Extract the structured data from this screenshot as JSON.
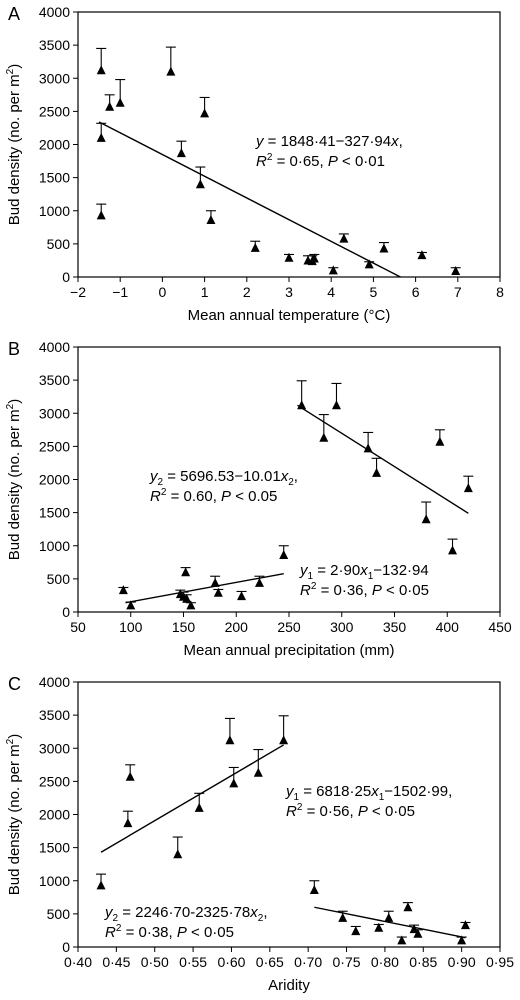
{
  "chart_data": [
    {
      "panel": "A",
      "type": "scatter",
      "xlabel": "Mean annual temperature (°C)",
      "ylabel": "Bud density (no. per m²)",
      "xlim": [
        -2,
        8
      ],
      "ylim": [
        0,
        4000
      ],
      "xticks": [
        "−2",
        "−1",
        "0",
        "1",
        "2",
        "3",
        "4",
        "5",
        "6",
        "7",
        "8"
      ],
      "yticks": [
        "0",
        "500",
        "1000",
        "1500",
        "2000",
        "2500",
        "3000",
        "3500",
        "4000"
      ],
      "points": [
        {
          "x": -1.45,
          "y": 3120,
          "err": 330
        },
        {
          "x": -1.45,
          "y": 2100,
          "err": 220
        },
        {
          "x": -1.45,
          "y": 930,
          "err": 170
        },
        {
          "x": -1.25,
          "y": 2570,
          "err": 180
        },
        {
          "x": -1.0,
          "y": 2630,
          "err": 350
        },
        {
          "x": 0.2,
          "y": 3100,
          "err": 370
        },
        {
          "x": 0.45,
          "y": 1870,
          "err": 180
        },
        {
          "x": 0.9,
          "y": 1400,
          "err": 260
        },
        {
          "x": 1.0,
          "y": 2470,
          "err": 240
        },
        {
          "x": 1.15,
          "y": 860,
          "err": 140
        },
        {
          "x": 2.2,
          "y": 440,
          "err": 100
        },
        {
          "x": 3.0,
          "y": 290,
          "err": 50
        },
        {
          "x": 3.45,
          "y": 250,
          "err": 70
        },
        {
          "x": 3.55,
          "y": 240,
          "err": 80
        },
        {
          "x": 3.6,
          "y": 280,
          "err": 60
        },
        {
          "x": 4.05,
          "y": 100,
          "err": 40
        },
        {
          "x": 4.3,
          "y": 580,
          "err": 70
        },
        {
          "x": 4.9,
          "y": 190,
          "err": 40
        },
        {
          "x": 5.25,
          "y": 430,
          "err": 90
        },
        {
          "x": 6.15,
          "y": 330,
          "err": 40
        },
        {
          "x": 6.95,
          "y": 90,
          "err": 50
        }
      ],
      "fit_lines": [
        {
          "x": [
            -1.5,
            5.64
          ],
          "y": [
            2340,
            0
          ]
        }
      ],
      "equations": [
        {
          "lines": [
            [
              "y",
              " = 1848·41−327·94",
              "x",
              ","
            ],
            [
              "R",
              "2",
              " = 0·65,  ",
              "P",
              " < 0·01"
            ]
          ],
          "pos": "upper-middle"
        }
      ]
    },
    {
      "panel": "B",
      "type": "scatter",
      "xlabel": "Mean annual precipitation (mm)",
      "ylabel": "Bud density (no. per m²)",
      "xlim": [
        50,
        450
      ],
      "ylim": [
        0,
        4000
      ],
      "xticks": [
        "50",
        "100",
        "150",
        "200",
        "250",
        "300",
        "350",
        "400",
        "450"
      ],
      "yticks": [
        "0",
        "500",
        "1000",
        "1500",
        "2000",
        "2500",
        "3000",
        "3500",
        "4000"
      ],
      "points": [
        {
          "x": 93,
          "y": 330,
          "err": 40
        },
        {
          "x": 100,
          "y": 100,
          "err": 50
        },
        {
          "x": 147,
          "y": 270,
          "err": 60
        },
        {
          "x": 150,
          "y": 230,
          "err": 70
        },
        {
          "x": 152,
          "y": 600,
          "err": 70
        },
        {
          "x": 153,
          "y": 200,
          "err": 60
        },
        {
          "x": 157,
          "y": 100,
          "err": 40
        },
        {
          "x": 180,
          "y": 440,
          "err": 100
        },
        {
          "x": 183,
          "y": 290,
          "err": 50
        },
        {
          "x": 205,
          "y": 240,
          "err": 70
        },
        {
          "x": 222,
          "y": 440,
          "err": 100
        },
        {
          "x": 245,
          "y": 860,
          "err": 140
        },
        {
          "x": 262,
          "y": 3120,
          "err": 370
        },
        {
          "x": 283,
          "y": 2630,
          "err": 350
        },
        {
          "x": 295,
          "y": 3120,
          "err": 330
        },
        {
          "x": 325,
          "y": 2470,
          "err": 240
        },
        {
          "x": 333,
          "y": 2100,
          "err": 220
        },
        {
          "x": 380,
          "y": 1400,
          "err": 260
        },
        {
          "x": 393,
          "y": 2570,
          "err": 180
        },
        {
          "x": 405,
          "y": 930,
          "err": 170
        },
        {
          "x": 420,
          "y": 1870,
          "err": 180
        }
      ],
      "fit_lines": [
        {
          "x": [
            95,
            245
          ],
          "y": [
            140,
            578
          ]
        },
        {
          "x": [
            258,
            420
          ],
          "y": [
            3120,
            1490
          ]
        }
      ],
      "equations": [
        {
          "lines": [
            [
              "y",
              "2",
              " = 5696.53−10.01",
              "x",
              "2",
              ","
            ],
            [
              "R",
              "2",
              " = 0.60,  ",
              "P",
              " < 0.05"
            ]
          ],
          "pos": "middle-left"
        },
        {
          "lines": [
            [
              "y",
              "1",
              " = 2·90",
              "x",
              "1",
              "−132·94"
            ],
            [
              "R",
              "2",
              " = 0·36,  ",
              "P",
              " < 0·05"
            ]
          ],
          "pos": "lower-right"
        }
      ]
    },
    {
      "panel": "C",
      "type": "scatter",
      "xlabel": "Aridity",
      "ylabel": "Bud density (no. per m²)",
      "xlim": [
        0.4,
        0.95
      ],
      "ylim": [
        0,
        4000
      ],
      "xticks": [
        "0·40",
        "0·45",
        "0·50",
        "0·55",
        "0·60",
        "0·65",
        "0·70",
        "0·75",
        "0·80",
        "0·85",
        "0·90",
        "0·95"
      ],
      "yticks": [
        "0",
        "500",
        "1000",
        "1500",
        "2000",
        "2500",
        "3000",
        "3500",
        "4000"
      ],
      "points": [
        {
          "x": 0.43,
          "y": 930,
          "err": 170
        },
        {
          "x": 0.465,
          "y": 1870,
          "err": 180
        },
        {
          "x": 0.468,
          "y": 2570,
          "err": 180
        },
        {
          "x": 0.53,
          "y": 1400,
          "err": 260
        },
        {
          "x": 0.558,
          "y": 2100,
          "err": 220
        },
        {
          "x": 0.598,
          "y": 3120,
          "err": 330
        },
        {
          "x": 0.603,
          "y": 2470,
          "err": 240
        },
        {
          "x": 0.635,
          "y": 2630,
          "err": 350
        },
        {
          "x": 0.668,
          "y": 3120,
          "err": 370
        },
        {
          "x": 0.708,
          "y": 860,
          "err": 140
        },
        {
          "x": 0.745,
          "y": 440,
          "err": 100
        },
        {
          "x": 0.762,
          "y": 240,
          "err": 70
        },
        {
          "x": 0.792,
          "y": 290,
          "err": 50
        },
        {
          "x": 0.805,
          "y": 440,
          "err": 100
        },
        {
          "x": 0.822,
          "y": 100,
          "err": 50
        },
        {
          "x": 0.83,
          "y": 600,
          "err": 70
        },
        {
          "x": 0.838,
          "y": 270,
          "err": 60
        },
        {
          "x": 0.843,
          "y": 200,
          "err": 60
        },
        {
          "x": 0.9,
          "y": 100,
          "err": 50
        },
        {
          "x": 0.905,
          "y": 330,
          "err": 40
        }
      ],
      "fit_lines": [
        {
          "x": [
            0.43,
            0.668
          ],
          "y": [
            1430,
            3050
          ]
        },
        {
          "x": [
            0.708,
            0.905
          ],
          "y": [
            600,
            140
          ]
        }
      ],
      "equations": [
        {
          "lines": [
            [
              "y",
              "1",
              " = 6818·25",
              "x",
              "1",
              "−1502·99,"
            ],
            [
              "R",
              "2",
              " = 0·56,  ",
              "P",
              " < 0·05"
            ]
          ],
          "pos": "middle-right"
        },
        {
          "lines": [
            [
              "y",
              "2",
              " = 2246·70-2325·78",
              "x",
              "2",
              ","
            ],
            [
              "R",
              "2",
              " = 0·38,  ",
              "P",
              " < 0·05"
            ]
          ],
          "pos": "lower-left"
        }
      ]
    }
  ]
}
